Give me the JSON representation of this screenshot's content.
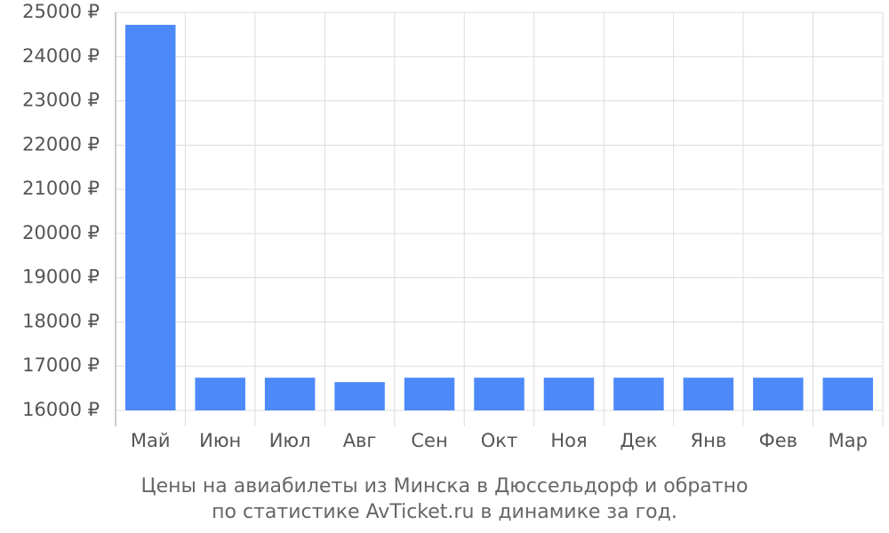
{
  "chart_data": {
    "type": "bar",
    "title": [
      "Цены на авиабилеты из Минска в Дюссельдорф и обратно",
      "по статистике AvTicket.ru в динамике за год."
    ],
    "categories": [
      "Май",
      "Июн",
      "Июл",
      "Авг",
      "Сен",
      "Окт",
      "Ноя",
      "Дек",
      "Янв",
      "Фев",
      "Мар"
    ],
    "values": [
      24720,
      16740,
      16740,
      16640,
      16740,
      16740,
      16740,
      16740,
      16740,
      16740,
      16740
    ],
    "color": "#4d89f9",
    "ylim": [
      16000,
      25000
    ],
    "yticks": [
      {
        "value": 16000,
        "label": "16000 ₽"
      },
      {
        "value": 17000,
        "label": "17000 ₽"
      },
      {
        "value": 18000,
        "label": "18000 ₽"
      },
      {
        "value": 19000,
        "label": "19000 ₽"
      },
      {
        "value": 20000,
        "label": "20000 ₽"
      },
      {
        "value": 21000,
        "label": "21000 ₽"
      },
      {
        "value": 22000,
        "label": "22000 ₽"
      },
      {
        "value": 23000,
        "label": "23000 ₽"
      },
      {
        "value": 24000,
        "label": "24000 ₽"
      },
      {
        "value": 25000,
        "label": "25000 ₽"
      }
    ],
    "grid": true
  }
}
